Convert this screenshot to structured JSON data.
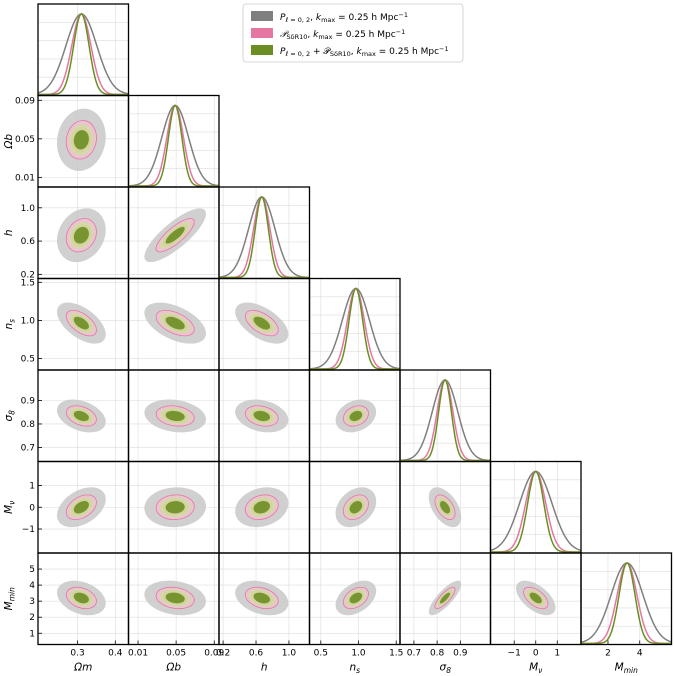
{
  "chart_data": {
    "type": "corner",
    "parameters": [
      {
        "key": "om",
        "label": "Ωm",
        "label_sub": "",
        "ticks": [
          0.3,
          0.4
        ],
        "tick_labels": [
          "0.3",
          "0.4"
        ],
        "range": [
          0.195,
          0.435
        ],
        "mean": 0.31,
        "sigma": 0.041,
        "corr_sigma": 0.012
      },
      {
        "key": "ob",
        "label": "Ωb",
        "label_sub": "",
        "ticks": [
          0.01,
          0.05,
          0.09
        ],
        "tick_labels": [
          "0.01",
          "0.05",
          "0.09"
        ],
        "range": [
          0.0,
          0.095
        ],
        "mean": 0.049,
        "sigma": 0.014,
        "corr_sigma": 0.006
      },
      {
        "key": "h",
        "label": "h",
        "label_sub": "",
        "ticks": [
          0.2,
          0.6,
          1.0
        ],
        "tick_labels": [
          "0.2",
          "0.6",
          "1.0"
        ],
        "range": [
          0.15,
          1.25
        ],
        "mean": 0.67,
        "sigma": 0.16,
        "corr_sigma": 0.06
      },
      {
        "key": "ns",
        "label": "n",
        "label_sub": "s",
        "ticks": [
          0.5,
          1.0,
          1.5
        ],
        "tick_labels": [
          "0.5",
          "1.0",
          "1.5"
        ],
        "range": [
          0.35,
          1.55
        ],
        "mean": 0.965,
        "sigma": 0.18,
        "corr_sigma": 0.05
      },
      {
        "key": "s8",
        "label": "σ",
        "label_sub": "8",
        "ticks": [
          0.7,
          0.8,
          0.9
        ],
        "tick_labels": [
          "0.7",
          "0.8",
          "0.9"
        ],
        "range": [
          0.64,
          1.03
        ],
        "mean": 0.834,
        "sigma": 0.055,
        "corr_sigma": 0.013
      },
      {
        "key": "mnu",
        "label": "M",
        "label_sub": "ν",
        "ticks": [
          -1,
          0,
          1
        ],
        "tick_labels": [
          "−1",
          "0",
          "1"
        ],
        "range": [
          -2.1,
          2.1
        ],
        "mean": 0.0,
        "sigma": 0.75,
        "corr_sigma": 0.17
      },
      {
        "key": "mmin",
        "label": "M",
        "label_sub": "min",
        "ticks": [
          1,
          2,
          3,
          4,
          5
        ],
        "tick_labels": [
          "1",
          "2",
          "3",
          "4",
          "5"
        ],
        "range": [
          0.3,
          6.0
        ],
        "mean": 3.2,
        "sigma": 1.0,
        "corr_sigma": 0.2
      }
    ],
    "diag_ticks": {
      "om": [
        0.3,
        0.4
      ],
      "ob": [
        0.01,
        0.05,
        0.09
      ],
      "h": [
        0.2,
        0.6,
        1.0
      ],
      "ns": [
        0.5,
        1.0,
        1.5
      ],
      "s8": [
        0.7,
        0.8,
        0.9
      ],
      "mnu": [
        -1,
        0,
        1
      ],
      "mmin": [
        2,
        4
      ]
    },
    "diag_tick_labels": {
      "mmin": [
        "2",
        "4"
      ]
    },
    "correlations": {
      "ob-om": 0.1,
      "h-om": 0.2,
      "h-ob": 0.8,
      "ns-om": -0.55,
      "ns-ob": -0.5,
      "ns-h": -0.55,
      "s8-om": -0.35,
      "s8-ob": -0.2,
      "s8-h": -0.25,
      "s8-ns": 0.25,
      "mnu-om": 0.4,
      "mnu-ob": 0.05,
      "mnu-h": 0.2,
      "mnu-ns": 0.3,
      "mnu-s8": -0.5,
      "mmin-om": -0.3,
      "mmin-ob": -0.2,
      "mmin-h": -0.3,
      "mmin-ns": 0.4,
      "mmin-s8": 0.8,
      "mmin-mnu": -0.55
    },
    "series": [
      {
        "name_main": "P",
        "name_sub": "ℓ = 0, 2",
        "kmax_label": "k",
        "kmax_sub": "max",
        "kmax_value": "= 0.25 h Mpc",
        "kmax_sup": "−1",
        "color": "#7f7f7f",
        "contour_1sigma": "#7f7f7f",
        "contour_2sigma": "#c8c8c8",
        "width_scale": 1.0
      },
      {
        "name_main": "𝒫",
        "name_sub": "SδR10",
        "kmax_label": "k",
        "kmax_sub": "max",
        "kmax_value": "= 0.25 h Mpc",
        "kmax_sup": "−1",
        "color": "#e377a2",
        "contour_1sigma": "#e377a2",
        "contour_2sigma": "#f6c9dc",
        "width_scale": 0.62
      },
      {
        "name_main": "P",
        "name_sub": "ℓ = 0, 2",
        "name_plus": "+ 𝒫",
        "name_sub2": "SδR10",
        "kmax_label": "k",
        "kmax_sub": "max",
        "kmax_value": "= 0.25 h Mpc",
        "kmax_sup": "−1",
        "color": "#6b8e23",
        "contour_1sigma": "#6b8e23",
        "contour_2sigma": "#d2dca0",
        "width_scale": 0.5
      }
    ],
    "legend_position": "top-right",
    "grid": true
  }
}
